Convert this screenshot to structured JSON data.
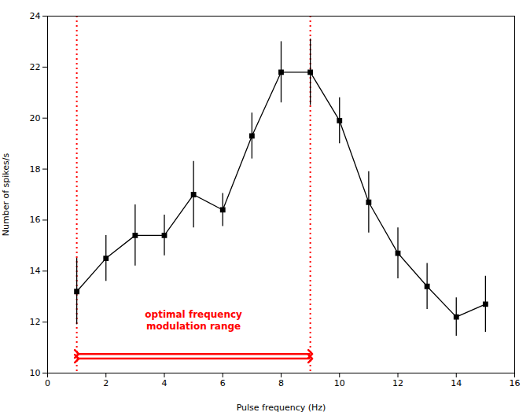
{
  "chart_data": {
    "type": "line",
    "x": [
      1,
      2,
      3,
      4,
      5,
      6,
      7,
      8,
      9,
      10,
      11,
      12,
      13,
      14,
      15
    ],
    "values": [
      13.2,
      14.5,
      15.4,
      15.4,
      17.0,
      16.4,
      19.3,
      21.8,
      21.8,
      19.9,
      16.7,
      14.7,
      13.4,
      12.2,
      12.7
    ],
    "yerr": [
      1.3,
      0.9,
      1.2,
      0.8,
      1.3,
      0.65,
      0.9,
      1.2,
      1.3,
      0.9,
      1.2,
      1.0,
      0.9,
      0.75,
      1.1
    ],
    "color": "#000000",
    "marker": "square",
    "line_style": "solid",
    "xlabel": "Pulse frequency (Hz)",
    "ylabel": "Number of spikes/s",
    "xlim": [
      0,
      16
    ],
    "ylim": [
      10,
      24
    ],
    "xticks": [
      0,
      2,
      4,
      6,
      8,
      10,
      12,
      14,
      16
    ],
    "yticks": [
      10,
      12,
      14,
      16,
      18,
      20,
      22,
      24
    ],
    "grid": false,
    "vlines": [
      {
        "x": 1,
        "color": "#ff0000"
      },
      {
        "x": 9,
        "color": "#ff0000"
      }
    ],
    "annotations": [
      {
        "text": "optimal frequency\nmodulation range",
        "x": 5.0,
        "y": 11.7,
        "color": "#ff0000"
      }
    ],
    "arrows": [
      {
        "x1": 1.0,
        "x2": 9.0,
        "y": 10.75,
        "color": "#ff0000"
      },
      {
        "x1": 1.0,
        "x2": 9.0,
        "y": 10.57,
        "color": "#ff0000"
      }
    ]
  }
}
